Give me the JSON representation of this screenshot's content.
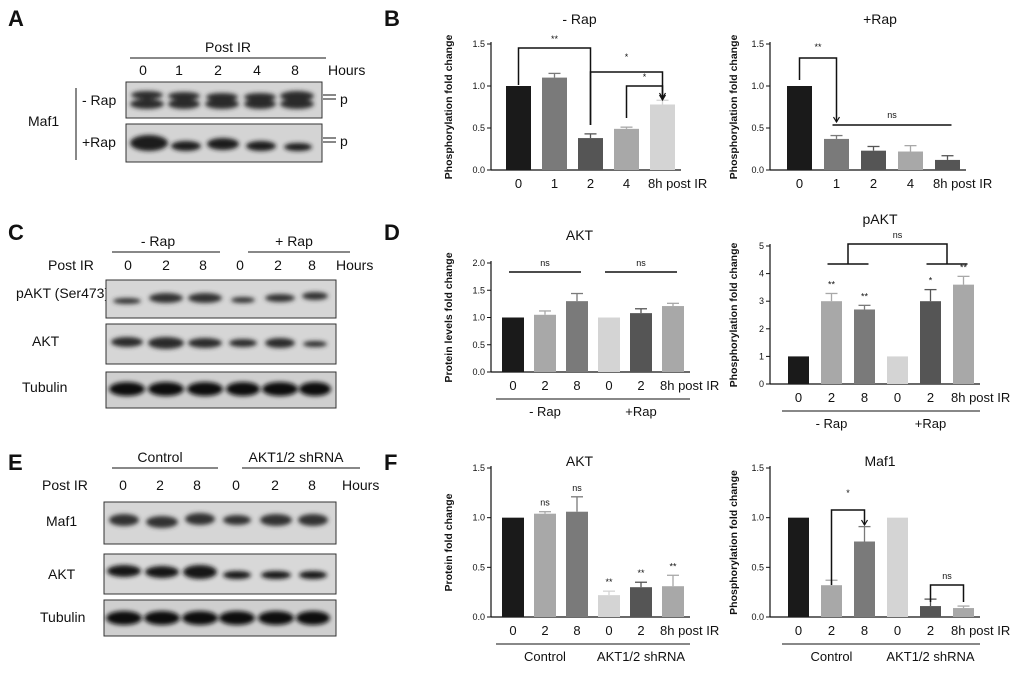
{
  "panel_labels": [
    "A",
    "B",
    "C",
    "D",
    "E",
    "F"
  ],
  "blot_A": {
    "header": "Post IR",
    "lanes": [
      "0",
      "1",
      "2",
      "4",
      "8"
    ],
    "units": "Hours",
    "protein": "Maf1",
    "rows": [
      "- Rap",
      "+Rap"
    ],
    "band_marker": "p"
  },
  "blot_C": {
    "groups": [
      "- Rap",
      "+ Rap"
    ],
    "post_label": "Post IR",
    "lanes": [
      "0",
      "2",
      "8",
      "0",
      "2",
      "8"
    ],
    "units": "Hours",
    "rows": [
      "pAKT (Ser473)",
      "AKT",
      "Tubulin"
    ]
  },
  "blot_E": {
    "groups": [
      "Control",
      "AKT1/2 shRNA"
    ],
    "post_label": "Post IR",
    "lanes": [
      "0",
      "2",
      "8",
      "0",
      "2",
      "8"
    ],
    "units": "Hours",
    "rows": [
      "Maf1",
      "AKT",
      "Tubulin"
    ]
  },
  "chart_data": [
    {
      "id": "B1",
      "type": "bar",
      "title": "- Rap",
      "ylabel": "Phosphorylation fold change",
      "categories": [
        "0",
        "1",
        "2",
        "4",
        "8h post IR"
      ],
      "values": [
        1.0,
        1.1,
        0.38,
        0.49,
        0.78
      ],
      "errors": [
        0,
        0.05,
        0.05,
        0.02,
        0.05
      ],
      "colors": [
        "#1a1a1a",
        "#7a7a7a",
        "#555555",
        "#a8a8a8",
        "#d4d4d4"
      ],
      "ylim": [
        0,
        1.5
      ],
      "yticks": [
        "0.0",
        "0.5",
        "1.0",
        "1.5"
      ],
      "significance": [
        "**",
        "*",
        "*"
      ]
    },
    {
      "id": "B2",
      "type": "bar",
      "title": "+Rap",
      "ylabel": "Phosphorylation fold change",
      "categories": [
        "0",
        "1",
        "2",
        "4",
        "8h post IR"
      ],
      "values": [
        1.0,
        0.37,
        0.23,
        0.22,
        0.12
      ],
      "errors": [
        0,
        0.04,
        0.05,
        0.07,
        0.05
      ],
      "colors": [
        "#1a1a1a",
        "#7a7a7a",
        "#555555",
        "#a8a8a8",
        "#555555"
      ],
      "ylim": [
        0,
        1.5
      ],
      "yticks": [
        "0.0",
        "0.5",
        "1.0",
        "1.5"
      ],
      "significance": [
        "**",
        "ns"
      ]
    },
    {
      "id": "D1",
      "type": "bar",
      "title": "AKT",
      "ylabel": "Protein levels fold change",
      "categories": [
        "0",
        "2",
        "8",
        "0",
        "2",
        "8h post IR"
      ],
      "groups": [
        "- Rap",
        "+Rap"
      ],
      "values": [
        1.0,
        1.05,
        1.3,
        1.0,
        1.08,
        1.21
      ],
      "errors": [
        0,
        0.07,
        0.14,
        0,
        0.08,
        0.05
      ],
      "colors": [
        "#1a1a1a",
        "#a8a8a8",
        "#7a7a7a",
        "#d4d4d4",
        "#555555",
        "#a8a8a8"
      ],
      "ylim": [
        0,
        2.0
      ],
      "yticks": [
        "0.0",
        "0.5",
        "1.0",
        "1.5",
        "2.0"
      ],
      "significance": [
        "ns",
        "ns"
      ]
    },
    {
      "id": "D2",
      "type": "bar",
      "title": "pAKT",
      "ylabel": "Phosphorylation fold change",
      "categories": [
        "0",
        "2",
        "8",
        "0",
        "2",
        "8h post IR"
      ],
      "groups": [
        "- Rap",
        "+Rap"
      ],
      "values": [
        1.0,
        3.0,
        2.7,
        1.0,
        3.0,
        3.6
      ],
      "errors": [
        0,
        0.28,
        0.15,
        0,
        0.42,
        0.3
      ],
      "colors": [
        "#1a1a1a",
        "#a8a8a8",
        "#7a7a7a",
        "#d4d4d4",
        "#555555",
        "#a8a8a8"
      ],
      "ylim": [
        0,
        5
      ],
      "yticks": [
        "0",
        "1",
        "2",
        "3",
        "4",
        "5"
      ],
      "significance": [
        "**",
        "**",
        "*",
        "**",
        "ns"
      ]
    },
    {
      "id": "F1",
      "type": "bar",
      "title": "AKT",
      "ylabel": "Protein fold change",
      "categories": [
        "0",
        "2",
        "8",
        "0",
        "2",
        "8h post IR"
      ],
      "groups": [
        "Control",
        "AKT1/2 shRNA"
      ],
      "values": [
        1.0,
        1.04,
        1.06,
        0.22,
        0.3,
        0.31
      ],
      "errors": [
        0,
        0.02,
        0.15,
        0.04,
        0.05,
        0.11
      ],
      "colors": [
        "#1a1a1a",
        "#a8a8a8",
        "#7a7a7a",
        "#d4d4d4",
        "#555555",
        "#a8a8a8"
      ],
      "ylim": [
        0,
        1.5
      ],
      "yticks": [
        "0.0",
        "0.5",
        "1.0",
        "1.5"
      ],
      "significance": [
        "ns",
        "ns",
        "**",
        "**",
        "**"
      ]
    },
    {
      "id": "F2",
      "type": "bar",
      "title": "Maf1",
      "ylabel": "Phosphorylation fold change",
      "categories": [
        "0",
        "2",
        "8",
        "0",
        "2",
        "8h post IR"
      ],
      "groups": [
        "Control",
        "AKT1/2 shRNA"
      ],
      "values": [
        1.0,
        0.32,
        0.76,
        1.0,
        0.11,
        0.09
      ],
      "errors": [
        0,
        0.05,
        0.15,
        0,
        0.07,
        0.02
      ],
      "colors": [
        "#1a1a1a",
        "#a8a8a8",
        "#7a7a7a",
        "#d4d4d4",
        "#555555",
        "#a8a8a8"
      ],
      "ylim": [
        0,
        1.5
      ],
      "yticks": [
        "0.0",
        "0.5",
        "1.0",
        "1.5"
      ],
      "significance": [
        "*",
        "ns"
      ]
    }
  ]
}
